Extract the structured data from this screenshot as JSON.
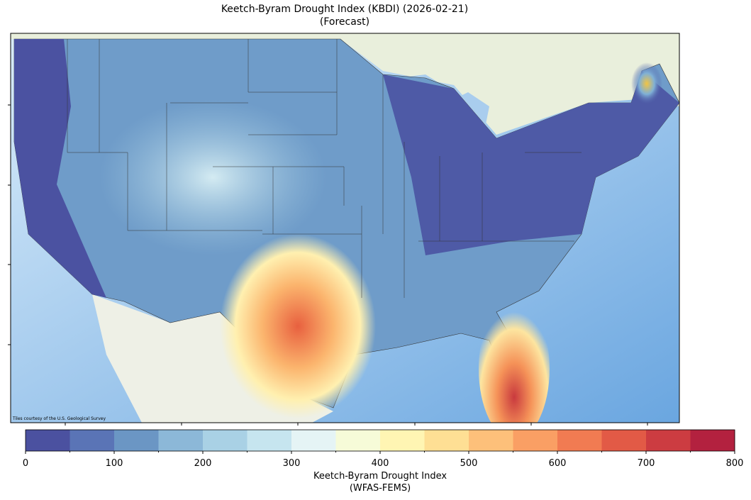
{
  "title": "Keetch-Byram Drought Index (KBDI) (2026-02-21)",
  "subtitle": "(Forecast)",
  "attribution": "Tiles courtesy of the U.S. Geological Survey",
  "colorbar": {
    "label": "Keetch-Byram Drought Index",
    "sublabel": "(WFAS-FEMS)",
    "lim": [
      0,
      800
    ],
    "ticks": [
      0,
      100,
      200,
      300,
      400,
      500,
      600,
      700,
      800
    ],
    "levels": [
      0,
      50,
      100,
      150,
      200,
      250,
      300,
      350,
      400,
      450,
      500,
      550,
      600,
      650,
      700,
      750,
      800
    ],
    "colors": [
      "#4b51a0",
      "#5a74b6",
      "#6b96c4",
      "#8cb8d8",
      "#a9d1e5",
      "#c6e5ef",
      "#e5f4f5",
      "#f6fbd8",
      "#fff5b3",
      "#fedf94",
      "#fdc07a",
      "#fa9f64",
      "#f17b52",
      "#e25a46",
      "#cc3c41",
      "#b3213f"
    ]
  }
}
